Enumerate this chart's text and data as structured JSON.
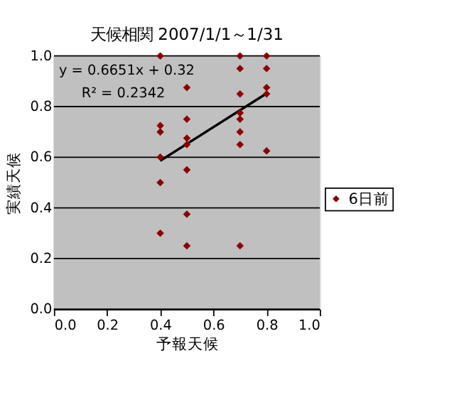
{
  "chart_data": {
    "type": "scatter",
    "title": "天候相関  2007/1/1～1/31",
    "xlabel": "予報天候",
    "ylabel": "実績天候",
    "xlim": [
      0.0,
      1.0
    ],
    "xticks": [
      {
        "value": 0,
        "label": "0.0"
      },
      0.2,
      0.4,
      0.6,
      0.8,
      {
        "value": 1,
        "label": "1.0"
      }
    ],
    "ylim": [
      0.0,
      1.0
    ],
    "yticks": [
      {
        "value": 0,
        "label": "0.0"
      },
      0.2,
      0.4,
      0.6,
      0.8,
      {
        "value": 1,
        "label": "1.0"
      }
    ],
    "grid": "y",
    "legend": "right",
    "marker": "diamond",
    "annotations": [
      "y = 0.6651x + 0.32",
      "R² = 0.2342"
    ],
    "series": [
      {
        "name": "6日前",
        "color": "#8b0000",
        "x": [
          0.4,
          0.4,
          0.4,
          0.4,
          0.4,
          0.4,
          0.5,
          0.5,
          0.5,
          0.5,
          0.5,
          0.5,
          0.5,
          0.7,
          0.7,
          0.7,
          0.7,
          0.7,
          0.7,
          0.7,
          0.7,
          0.8,
          0.8,
          0.8,
          0.8,
          0.8
        ],
        "values": [
          1.0,
          0.725,
          0.7,
          0.6,
          0.5,
          0.3,
          0.875,
          0.75,
          0.675,
          0.65,
          0.55,
          0.375,
          0.25,
          1.0,
          0.95,
          0.85,
          0.775,
          0.75,
          0.7,
          0.65,
          0.25,
          1.0,
          0.95,
          0.875,
          0.85,
          0.625
        ]
      },
      {
        "type": "line",
        "marker": "none",
        "color": "#000000",
        "x": [
          0.4,
          0.8
        ],
        "values": [
          0.586,
          0.852
        ]
      }
    ]
  }
}
